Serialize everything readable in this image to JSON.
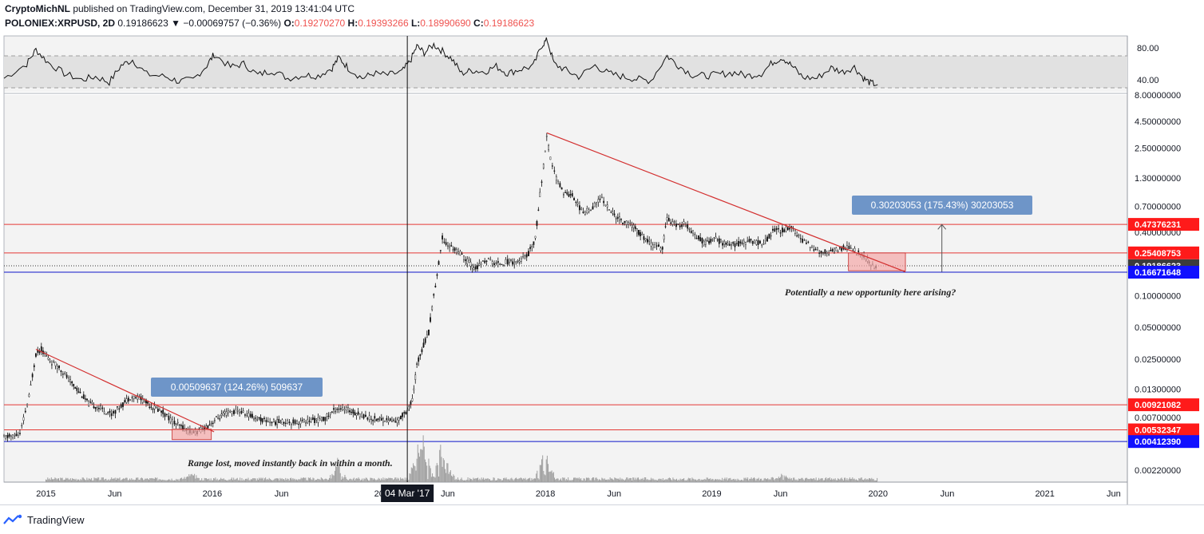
{
  "header": {
    "author": "CryptoMichNL",
    "published_text": " published on TradingView.com, December 31, 2019 13:41:04 UTC",
    "symbol": "POLONIEX:XRPUSD, 2D",
    "last": "0.19186623",
    "change": "▼ −0.00069757 (−0.36%)",
    "o_label": "O:",
    "o_value": "0.19270270",
    "h_label": "H:",
    "h_value": "0.19393266",
    "l_label": "L:",
    "l_value": "0.18990690",
    "c_label": "C:",
    "c_value": "0.19186623"
  },
  "footer": {
    "brand": "TradingView"
  },
  "colors": {
    "red_line": "#e53935",
    "blue_line": "#0d14c9",
    "label_red": "#ff1a1a",
    "label_blue": "#1010ff",
    "label_dark": "#3c3c3c",
    "callout": "#6e95c8",
    "zone_fill": "#f4a6a6",
    "trendline": "#d32f2f",
    "pane_bg": "#f3f3f3"
  },
  "chart_data": {
    "type": "candlestick",
    "y_scale": "log",
    "ylim": [
      0.0017,
      8.0
    ],
    "xlim": [
      "2014-10-01",
      "2021-07-01"
    ],
    "x_ticks": [
      {
        "date": "2015-01-01",
        "label": "2015"
      },
      {
        "date": "2015-06-01",
        "label": "Jun"
      },
      {
        "date": "2016-01-01",
        "label": "2016"
      },
      {
        "date": "2016-06-01",
        "label": "Jun"
      },
      {
        "date": "2017-01-01",
        "label": "20"
      },
      {
        "date": "2017-06-01",
        "label": "Jun"
      },
      {
        "date": "2018-01-01",
        "label": "2018"
      },
      {
        "date": "2018-06-01",
        "label": "Jun"
      },
      {
        "date": "2019-01-01",
        "label": "2019"
      },
      {
        "date": "2019-06-01",
        "label": "Jun"
      },
      {
        "date": "2020-01-01",
        "label": "2020"
      },
      {
        "date": "2020-06-01",
        "label": "Jun"
      },
      {
        "date": "2021-01-01",
        "label": "2021"
      },
      {
        "date": "2021-06-01",
        "label": "Jun"
      }
    ],
    "y_ticks": [
      {
        "value": 8.0,
        "label": "8.00000000"
      },
      {
        "value": 4.5,
        "label": "4.50000000"
      },
      {
        "value": 2.5,
        "label": "2.50000000"
      },
      {
        "value": 1.3,
        "label": "1.30000000"
      },
      {
        "value": 0.7,
        "label": "0.70000000"
      },
      {
        "value": 0.4,
        "label": "0.40000000"
      },
      {
        "value": 0.1,
        "label": "0.10000000"
      },
      {
        "value": 0.05,
        "label": "0.05000000"
      },
      {
        "value": 0.025,
        "label": "0.02500000"
      },
      {
        "value": 0.013,
        "label": "0.01300000"
      },
      {
        "value": 0.007,
        "label": "0.00700000"
      },
      {
        "value": 0.0022,
        "label": "0.00220000"
      }
    ],
    "horizontal_levels": [
      {
        "value": 0.47376231,
        "label": "0.47376231",
        "color": "red"
      },
      {
        "value": 0.25408753,
        "label": "0.25408753",
        "color": "red"
      },
      {
        "value": 0.19186623,
        "label": "0.19186623",
        "color": "dark",
        "dotted": true
      },
      {
        "value": 0.16671648,
        "label": "0.16671648",
        "color": "blue"
      },
      {
        "value": 0.00921082,
        "label": "0.00921082",
        "color": "red"
      },
      {
        "value": 0.00532347,
        "label": "0.00532347",
        "color": "red"
      },
      {
        "value": 0.0041239,
        "label": "0.00412390",
        "color": "blue"
      }
    ],
    "price_path": [
      [
        "2014-10-01",
        0.0045
      ],
      [
        "2014-11-05",
        0.0048
      ],
      [
        "2014-11-25",
        0.011
      ],
      [
        "2014-12-10",
        0.028
      ],
      [
        "2014-12-22",
        0.031
      ],
      [
        "2015-01-10",
        0.024
      ],
      [
        "2015-01-30",
        0.021
      ],
      [
        "2015-02-20",
        0.016
      ],
      [
        "2015-03-10",
        0.013
      ],
      [
        "2015-04-05",
        0.0095
      ],
      [
        "2015-05-01",
        0.0085
      ],
      [
        "2015-05-25",
        0.0075
      ],
      [
        "2015-06-15",
        0.009
      ],
      [
        "2015-07-05",
        0.011
      ],
      [
        "2015-07-25",
        0.0108
      ],
      [
        "2015-08-20",
        0.009
      ],
      [
        "2015-09-15",
        0.0078
      ],
      [
        "2015-10-10",
        0.0062
      ],
      [
        "2015-11-05",
        0.0053
      ],
      [
        "2015-11-25",
        0.005
      ],
      [
        "2015-12-15",
        0.0055
      ],
      [
        "2016-01-10",
        0.0068
      ],
      [
        "2016-02-05",
        0.0078
      ],
      [
        "2016-03-01",
        0.008
      ],
      [
        "2016-03-25",
        0.0072
      ],
      [
        "2016-04-20",
        0.0066
      ],
      [
        "2016-05-15",
        0.0063
      ],
      [
        "2016-06-10",
        0.0064
      ],
      [
        "2016-07-05",
        0.0063
      ],
      [
        "2016-08-01",
        0.0065
      ],
      [
        "2016-09-01",
        0.0067
      ],
      [
        "2016-10-01",
        0.0086
      ],
      [
        "2016-10-25",
        0.0082
      ],
      [
        "2016-11-20",
        0.0075
      ],
      [
        "2016-12-15",
        0.0068
      ],
      [
        "2017-01-10",
        0.0067
      ],
      [
        "2017-02-10",
        0.0064
      ],
      [
        "2017-03-01",
        0.008
      ],
      [
        "2017-03-15",
        0.01
      ],
      [
        "2017-03-25",
        0.022
      ],
      [
        "2017-04-05",
        0.031
      ],
      [
        "2017-04-20",
        0.045
      ],
      [
        "2017-05-01",
        0.1
      ],
      [
        "2017-05-12",
        0.2
      ],
      [
        "2017-05-20",
        0.35
      ],
      [
        "2017-06-01",
        0.3
      ],
      [
        "2017-06-20",
        0.27
      ],
      [
        "2017-07-10",
        0.22
      ],
      [
        "2017-08-01",
        0.18
      ],
      [
        "2017-08-25",
        0.22
      ],
      [
        "2017-09-15",
        0.2
      ],
      [
        "2017-10-10",
        0.21
      ],
      [
        "2017-11-05",
        0.21
      ],
      [
        "2017-11-25",
        0.25
      ],
      [
        "2017-12-10",
        0.35
      ],
      [
        "2017-12-20",
        0.9
      ],
      [
        "2017-12-28",
        1.7
      ],
      [
        "2018-01-04",
        3.1
      ],
      [
        "2018-01-12",
        2.0
      ],
      [
        "2018-01-25",
        1.3
      ],
      [
        "2018-02-10",
        0.95
      ],
      [
        "2018-03-01",
        0.9
      ],
      [
        "2018-03-25",
        0.6
      ],
      [
        "2018-04-15",
        0.7
      ],
      [
        "2018-05-05",
        0.85
      ],
      [
        "2018-05-25",
        0.62
      ],
      [
        "2018-06-20",
        0.5
      ],
      [
        "2018-07-10",
        0.47
      ],
      [
        "2018-08-05",
        0.35
      ],
      [
        "2018-08-25",
        0.3
      ],
      [
        "2018-09-15",
        0.28
      ],
      [
        "2018-09-25",
        0.55
      ],
      [
        "2018-10-15",
        0.46
      ],
      [
        "2018-11-05",
        0.48
      ],
      [
        "2018-11-25",
        0.38
      ],
      [
        "2018-12-15",
        0.32
      ],
      [
        "2019-01-10",
        0.34
      ],
      [
        "2019-02-05",
        0.3
      ],
      [
        "2019-03-01",
        0.31
      ],
      [
        "2019-04-01",
        0.33
      ],
      [
        "2019-04-25",
        0.31
      ],
      [
        "2019-05-15",
        0.41
      ],
      [
        "2019-06-05",
        0.42
      ],
      [
        "2019-06-25",
        0.45
      ],
      [
        "2019-07-15",
        0.34
      ],
      [
        "2019-08-05",
        0.3
      ],
      [
        "2019-08-25",
        0.26
      ],
      [
        "2019-09-15",
        0.26
      ],
      [
        "2019-10-05",
        0.27
      ],
      [
        "2019-10-25",
        0.29
      ],
      [
        "2019-11-15",
        0.26
      ],
      [
        "2019-12-05",
        0.22
      ],
      [
        "2019-12-20",
        0.19
      ],
      [
        "2019-12-31",
        0.19186623
      ]
    ],
    "volume_spikes": [
      [
        "2016-10-01",
        0.5
      ],
      [
        "2017-03-25",
        0.7
      ],
      [
        "2017-04-10",
        1.0
      ],
      [
        "2017-05-15",
        0.8
      ],
      [
        "2017-06-01",
        0.4
      ],
      [
        "2017-12-28",
        0.6
      ],
      [
        "2018-01-08",
        0.3
      ],
      [
        "2015-11-15",
        0.15
      ],
      [
        "2019-06-01",
        0.1
      ]
    ],
    "rsi": {
      "ylim": [
        25,
        95
      ],
      "ticks": [
        {
          "value": 80,
          "label": "80.00"
        },
        {
          "value": 40,
          "label": "40.00"
        }
      ],
      "band": [
        30,
        70
      ],
      "path": [
        [
          "2014-10-01",
          42
        ],
        [
          "2014-11-20",
          60
        ],
        [
          "2014-12-10",
          78
        ],
        [
          "2015-01-05",
          62
        ],
        [
          "2015-02-10",
          48
        ],
        [
          "2015-03-20",
          40
        ],
        [
          "2015-04-20",
          44
        ],
        [
          "2015-05-20",
          37
        ],
        [
          "2015-06-15",
          58
        ],
        [
          "2015-07-10",
          65
        ],
        [
          "2015-08-10",
          47
        ],
        [
          "2015-09-20",
          44
        ],
        [
          "2015-10-20",
          38
        ],
        [
          "2015-11-20",
          40
        ],
        [
          "2015-12-20",
          58
        ],
        [
          "2016-01-05",
          72
        ],
        [
          "2016-02-10",
          56
        ],
        [
          "2016-03-10",
          60
        ],
        [
          "2016-04-10",
          46
        ],
        [
          "2016-05-10",
          52
        ],
        [
          "2016-06-15",
          42
        ],
        [
          "2016-07-20",
          46
        ],
        [
          "2016-08-20",
          45
        ],
        [
          "2016-09-20",
          55
        ],
        [
          "2016-10-05",
          68
        ],
        [
          "2016-10-25",
          55
        ],
        [
          "2016-11-25",
          42
        ],
        [
          "2016-12-20",
          48
        ],
        [
          "2017-01-20",
          46
        ],
        [
          "2017-02-20",
          50
        ],
        [
          "2017-03-10",
          63
        ],
        [
          "2017-03-25",
          82
        ],
        [
          "2017-04-10",
          74
        ],
        [
          "2017-05-01",
          84
        ],
        [
          "2017-05-20",
          76
        ],
        [
          "2017-06-10",
          66
        ],
        [
          "2017-07-01",
          48
        ],
        [
          "2017-07-25",
          52
        ],
        [
          "2017-08-20",
          50
        ],
        [
          "2017-09-15",
          57
        ],
        [
          "2017-10-10",
          48
        ],
        [
          "2017-11-05",
          53
        ],
        [
          "2017-12-05",
          57
        ],
        [
          "2017-12-25",
          84
        ],
        [
          "2018-01-05",
          90
        ],
        [
          "2018-01-20",
          60
        ],
        [
          "2018-02-15",
          52
        ],
        [
          "2018-03-15",
          44
        ],
        [
          "2018-04-20",
          58
        ],
        [
          "2018-05-20",
          48
        ],
        [
          "2018-06-20",
          44
        ],
        [
          "2018-07-20",
          41
        ],
        [
          "2018-08-20",
          39
        ],
        [
          "2018-09-25",
          70
        ],
        [
          "2018-10-20",
          58
        ],
        [
          "2018-11-20",
          46
        ],
        [
          "2018-12-20",
          45
        ],
        [
          "2019-01-20",
          47
        ],
        [
          "2019-02-20",
          49
        ],
        [
          "2019-03-20",
          45
        ],
        [
          "2019-04-20",
          48
        ],
        [
          "2019-05-15",
          62
        ],
        [
          "2019-06-05",
          68
        ],
        [
          "2019-06-25",
          58
        ],
        [
          "2019-07-20",
          43
        ],
        [
          "2019-08-20",
          42
        ],
        [
          "2019-09-20",
          55
        ],
        [
          "2019-10-15",
          50
        ],
        [
          "2019-11-10",
          56
        ],
        [
          "2019-11-30",
          42
        ],
        [
          "2019-12-15",
          36
        ],
        [
          "2019-12-31",
          34
        ]
      ]
    },
    "trendlines": [
      {
        "from": [
          "2014-12-10",
          0.031
        ],
        "to": [
          "2016-01-05",
          0.0051
        ]
      },
      {
        "from": [
          "2018-01-04",
          3.5
        ],
        "to": [
          "2020-03-01",
          0.168
        ]
      }
    ],
    "zones": [
      {
        "from": "2015-10-05",
        "to": "2015-12-30",
        "top": 0.0054,
        "bottom": 0.0043
      },
      {
        "from": "2019-10-28",
        "to": "2020-03-01",
        "top": 0.254,
        "bottom": 0.172
      }
    ],
    "measure_arrow": {
      "date": "2020-05-20",
      "from": 0.168,
      "to": 0.472
    },
    "crosshair_date": "2017-03-04",
    "annotations": {
      "callout1": "0.00509637 (124.26%) 509637",
      "callout2": "0.30203053 (175.43%) 30203053",
      "note_range": "Range lost, moved instantly back in within a month.",
      "note_opportunity": "Potentially a new opportunity here arising?",
      "crosshair_label": "04 Mar '17"
    }
  }
}
